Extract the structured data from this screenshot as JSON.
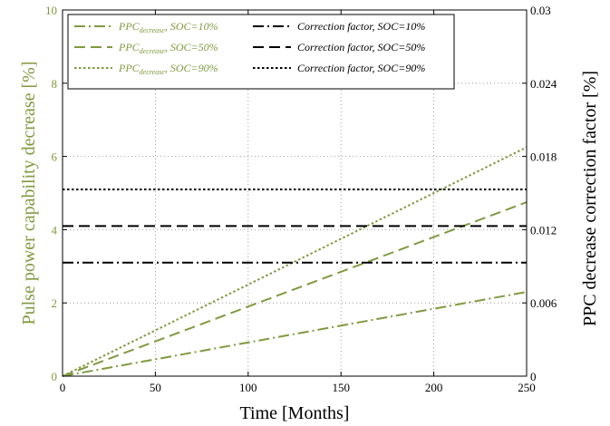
{
  "chart_data": {
    "type": "line",
    "xlabel": "Time [Months]",
    "ylabel_left": "Pulse power capability decrease [%]",
    "ylabel_right": "PPC decrease correction factor [%]",
    "xlim": [
      0,
      250
    ],
    "ylim_left": [
      0,
      10
    ],
    "ylim_right": [
      0,
      0.03
    ],
    "xticks": [
      0,
      50,
      100,
      150,
      200,
      250
    ],
    "xtick_labels": [
      "0",
      "50",
      "100",
      "150",
      "200",
      "250"
    ],
    "yticks_left": [
      0,
      2,
      4,
      6,
      8,
      10
    ],
    "ytick_labels_left": [
      "0",
      "2",
      "4",
      "6",
      "8",
      "10"
    ],
    "yticks_right": [
      0,
      0.006,
      0.012,
      0.018,
      0.024,
      0.03
    ],
    "ytick_labels_right": [
      "0",
      "0.006",
      "0.012",
      "0.018",
      "0.024",
      "0.03"
    ],
    "grid": true,
    "legend_position": "top-left",
    "colors": {
      "ppc": "#7f9a3f",
      "correction": "#000000",
      "axis_left": "#7f9a3f",
      "axis_right": "#000000"
    },
    "series": [
      {
        "name": "PPC decrease, SOC=10%",
        "legend_main": "PPC",
        "legend_sub": "decrease",
        "legend_tail": ", SOC=10%",
        "axis": "left",
        "style": "dashdot",
        "color": "#7f9a3f",
        "x": [
          0,
          250
        ],
        "y": [
          0,
          2.3
        ]
      },
      {
        "name": "PPC decrease, SOC=50%",
        "legend_main": "PPC",
        "legend_sub": "decrease",
        "legend_tail": ", SOC=50%",
        "axis": "left",
        "style": "dashed",
        "color": "#7f9a3f",
        "x": [
          0,
          250
        ],
        "y": [
          0,
          4.75
        ]
      },
      {
        "name": "PPC decrease, SOC=90%",
        "legend_main": "PPC",
        "legend_sub": "decrease",
        "legend_tail": ", SOC=90%",
        "axis": "left",
        "style": "dotted",
        "color": "#7f9a3f",
        "x": [
          0,
          250
        ],
        "y": [
          0,
          6.25
        ]
      },
      {
        "name": "Correction factor, SOC=10%",
        "axis": "right",
        "style": "dashdot",
        "color": "#000000",
        "x": [
          0,
          250
        ],
        "y": [
          0.0093,
          0.0093
        ]
      },
      {
        "name": "Correction factor, SOC=50%",
        "axis": "right",
        "style": "dashed",
        "color": "#000000",
        "x": [
          0,
          250
        ],
        "y": [
          0.0123,
          0.0123
        ]
      },
      {
        "name": "Correction factor, SOC=90%",
        "axis": "right",
        "style": "dotted",
        "color": "#000000",
        "x": [
          0,
          250
        ],
        "y": [
          0.0153,
          0.0153
        ]
      }
    ]
  }
}
